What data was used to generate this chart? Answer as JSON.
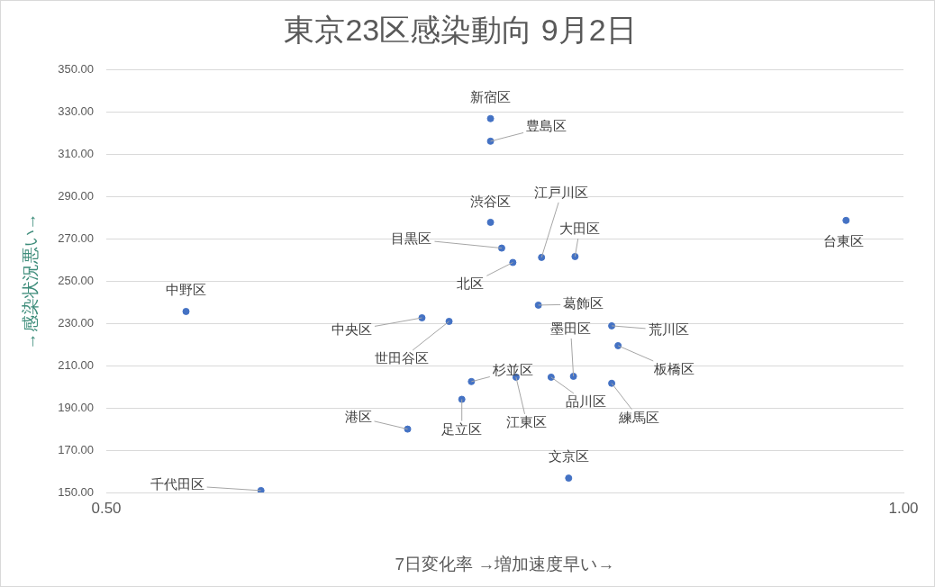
{
  "chart_data": {
    "type": "scatter",
    "title": "東京23区感染動向 9月2日",
    "xlabel": "7日変化率 →増加速度早い→",
    "ylabel": "→感染状況悪い→",
    "xlim": [
      0.5,
      1.0
    ],
    "xticks": [
      {
        "value": 0.5,
        "label": "0.50"
      },
      {
        "value": 1.0,
        "label": "1.00"
      }
    ],
    "ylim": [
      150,
      350
    ],
    "yticks": [
      {
        "value": 150,
        "label": "150.00"
      },
      {
        "value": 170,
        "label": "170.00"
      },
      {
        "value": 190,
        "label": "190.00"
      },
      {
        "value": 210,
        "label": "210.00"
      },
      {
        "value": 230,
        "label": "230.00"
      },
      {
        "value": 250,
        "label": "250.00"
      },
      {
        "value": 270,
        "label": "270.00"
      },
      {
        "value": 290,
        "label": "290.00"
      },
      {
        "value": 310,
        "label": "310.00"
      },
      {
        "value": 330,
        "label": "330.00"
      },
      {
        "value": 350,
        "label": "350.00"
      }
    ],
    "grid": "y",
    "legend": false,
    "marker": "circle",
    "series": [
      {
        "color": "#4472c4",
        "x": [
          0.741,
          0.741,
          0.741,
          0.748,
          0.755,
          0.773,
          0.794,
          0.964,
          0.55,
          0.698,
          0.715,
          0.771,
          0.817,
          0.821,
          0.793,
          0.779,
          0.729,
          0.757,
          0.817,
          0.723,
          0.689,
          0.79,
          0.597
        ],
        "values": [
          327.0,
          316.3,
          277.9,
          265.7,
          258.9,
          261.3,
          261.7,
          278.8,
          235.7,
          232.7,
          231.0,
          238.7,
          228.9,
          219.5,
          205.0,
          204.6,
          202.5,
          204.6,
          201.7,
          194.1,
          180.0,
          156.8,
          150.9
        ]
      }
    ],
    "annotations": [
      {
        "text": "新宿区",
        "x": 0.741,
        "y": 327.0
      },
      {
        "text": "豊島区",
        "x": 0.741,
        "y": 316.3
      },
      {
        "text": "渋谷区",
        "x": 0.741,
        "y": 277.9
      },
      {
        "text": "目黒区",
        "x": 0.748,
        "y": 265.7
      },
      {
        "text": "北区",
        "x": 0.755,
        "y": 258.9
      },
      {
        "text": "江戸川区",
        "x": 0.773,
        "y": 261.3
      },
      {
        "text": "大田区",
        "x": 0.794,
        "y": 261.7
      },
      {
        "text": "台東区",
        "x": 0.964,
        "y": 278.8
      },
      {
        "text": "中野区",
        "x": 0.55,
        "y": 235.7
      },
      {
        "text": "中央区",
        "x": 0.698,
        "y": 232.7
      },
      {
        "text": "世田谷区",
        "x": 0.715,
        "y": 231.0
      },
      {
        "text": "葛飾区",
        "x": 0.771,
        "y": 238.7
      },
      {
        "text": "荒川区",
        "x": 0.817,
        "y": 228.9
      },
      {
        "text": "板橋区",
        "x": 0.821,
        "y": 219.5
      },
      {
        "text": "墨田区",
        "x": 0.793,
        "y": 205.0
      },
      {
        "text": "品川区",
        "x": 0.779,
        "y": 204.6
      },
      {
        "text": "杉並区",
        "x": 0.729,
        "y": 202.5
      },
      {
        "text": "江東区",
        "x": 0.757,
        "y": 204.6
      },
      {
        "text": "練馬区",
        "x": 0.817,
        "y": 201.7
      },
      {
        "text": "足立区",
        "x": 0.723,
        "y": 194.1
      },
      {
        "text": "港区",
        "x": 0.689,
        "y": 180.0
      },
      {
        "text": "文京区",
        "x": 0.79,
        "y": 156.8
      },
      {
        "text": "千代田区",
        "x": 0.597,
        "y": 150.9
      }
    ]
  }
}
